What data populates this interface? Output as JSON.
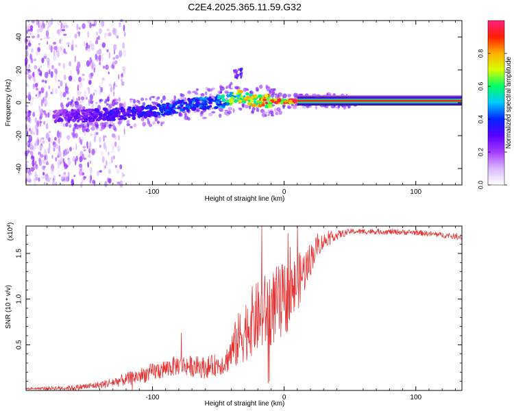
{
  "title": "C2E4.2025.365.11.59.G32",
  "chart_data": [
    {
      "type": "heatmap",
      "name": "spectrogram",
      "xlabel": "Height of straight line (km)",
      "ylabel": "Frequency (Hz)",
      "xlim": [
        -196,
        135
      ],
      "ylim": [
        -50,
        50
      ],
      "xticks": [
        {
          "value": -100,
          "label": "-100"
        },
        {
          "value": 0,
          "label": "0"
        },
        {
          "value": 100,
          "label": "100"
        }
      ],
      "yticks": [
        {
          "value": -40,
          "label": "-40"
        },
        {
          "value": -20,
          "label": "-20"
        },
        {
          "value": 0,
          "label": "0"
        },
        {
          "value": 20,
          "label": "20"
        },
        {
          "value": 40,
          "label": "40"
        }
      ],
      "ridge": {
        "x": [
          -196,
          -170,
          -150,
          -130,
          -110,
          -90,
          -70,
          -55,
          -45,
          -40,
          -35,
          -30,
          -20,
          -10,
          0,
          10,
          20,
          135
        ],
        "frequency": [
          -8,
          -8,
          -8,
          -7,
          -6,
          -4,
          -1,
          0,
          1,
          3,
          4,
          3,
          1,
          1,
          1,
          1,
          1,
          1
        ],
        "amplitude": [
          0.15,
          0.25,
          0.3,
          0.33,
          0.36,
          0.4,
          0.43,
          0.46,
          0.55,
          0.62,
          0.68,
          0.72,
          0.78,
          0.82,
          0.85,
          0.88,
          0.9,
          0.9
        ]
      },
      "colorbar": {
        "label": "Normalized spectral amplitude",
        "range": [
          0,
          1
        ],
        "ticks": [
          {
            "value": 0.0,
            "label": "0.0"
          },
          {
            "value": 0.2,
            "label": "0.2"
          },
          {
            "value": 0.4,
            "label": "0.4"
          },
          {
            "value": 0.6,
            "label": "0.6"
          },
          {
            "value": 0.8,
            "label": "0.8"
          }
        ],
        "colormap": [
          "#ffffff",
          "#d9b8ff",
          "#a63cff",
          "#5a00ff",
          "#0024ff",
          "#00c8ff",
          "#00ff66",
          "#d8ff00",
          "#ffb000",
          "#ff1e00",
          "#ff2080"
        ]
      }
    },
    {
      "type": "line",
      "name": "snr",
      "xlabel": "Height of straight line (km)",
      "ylabel": "SNR (10 * v/v)",
      "scale_note": "(x10^4)",
      "xlim": [
        -196,
        135
      ],
      "ylim": [
        0,
        1.8
      ],
      "xticks": [
        {
          "value": -100,
          "label": "-100"
        },
        {
          "value": 0,
          "label": "0"
        },
        {
          "value": 100,
          "label": "100"
        }
      ],
      "yticks": [
        {
          "value": 0.5,
          "label": "0.5"
        },
        {
          "value": 1.0,
          "label": "1.0"
        },
        {
          "value": 1.5,
          "label": "1.5"
        }
      ],
      "color": "#e53232",
      "envelope": {
        "x": [
          -196,
          -160,
          -140,
          -120,
          -100,
          -80,
          -60,
          -45,
          -35,
          -25,
          -15,
          -5,
          5,
          15,
          25,
          35,
          50,
          70,
          100,
          135
        ],
        "snr": [
          0.02,
          0.03,
          0.06,
          0.12,
          0.2,
          0.28,
          0.25,
          0.3,
          0.55,
          0.75,
          0.85,
          0.95,
          1.05,
          1.3,
          1.58,
          1.68,
          1.74,
          1.74,
          1.73,
          1.68
        ]
      },
      "spike_amplitude": {
        "x": [
          -196,
          -140,
          -100,
          -60,
          -45,
          -35,
          -25,
          -15,
          -5,
          5,
          15,
          25,
          35,
          50,
          135
        ],
        "amp": [
          0.01,
          0.04,
          0.1,
          0.12,
          0.12,
          0.3,
          0.38,
          0.42,
          0.42,
          0.38,
          0.25,
          0.12,
          0.06,
          0.03,
          0.03
        ]
      },
      "peaks": [
        {
          "x": -78,
          "snr": 0.63
        },
        {
          "x": -17,
          "snr": 1.8
        },
        {
          "x": -12,
          "snr": 0.08
        },
        {
          "x": 3,
          "snr": 1.72
        },
        {
          "x": 10,
          "snr": 1.8
        }
      ]
    }
  ]
}
